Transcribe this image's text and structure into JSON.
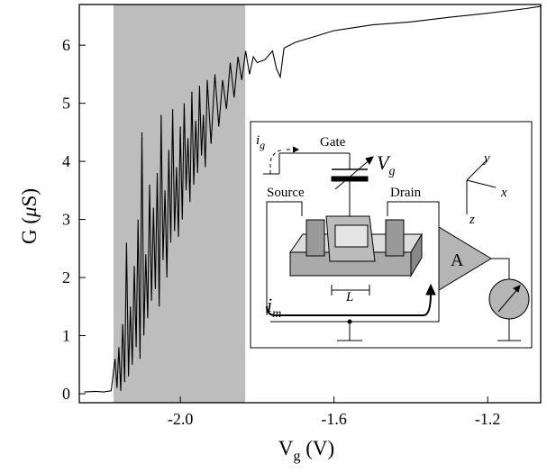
{
  "chart_data": {
    "type": "line",
    "x_label": {
      "main": "V",
      "sub": "g",
      "unit": " (V)"
    },
    "y_label": {
      "main": "G (",
      "greek": "μ",
      "unit": "S)"
    },
    "xlim": [
      -2.263,
      -1.062
    ],
    "ylim": [
      -0.155,
      6.7
    ],
    "xticks": [
      {
        "value": -2,
        "label": "-2.0"
      },
      -1.6,
      -1.2
    ],
    "yticks": [
      0,
      1,
      2,
      3,
      4,
      5,
      6
    ],
    "shade": {
      "range": [
        -2.174,
        -1.831
      ],
      "color": "#bdbdbd"
    },
    "color": "#000000",
    "x": [
      -2.25,
      -2.22,
      -2.2,
      -2.18,
      -2.17,
      -2.165,
      -2.16,
      -2.155,
      -2.15,
      -2.145,
      -2.14,
      -2.135,
      -2.13,
      -2.125,
      -2.12,
      -2.115,
      -2.11,
      -2.105,
      -2.1,
      -2.095,
      -2.09,
      -2.085,
      -2.08,
      -2.075,
      -2.07,
      -2.065,
      -2.06,
      -2.055,
      -2.05,
      -2.045,
      -2.04,
      -2.035,
      -2.03,
      -2.025,
      -2.02,
      -2.015,
      -2.01,
      -2.005,
      -2.0,
      -1.995,
      -1.99,
      -1.985,
      -1.98,
      -1.975,
      -1.97,
      -1.965,
      -1.96,
      -1.955,
      -1.95,
      -1.945,
      -1.94,
      -1.935,
      -1.93,
      -1.92,
      -1.91,
      -1.9,
      -1.89,
      -1.88,
      -1.87,
      -1.86,
      -1.85,
      -1.84,
      -1.83,
      -1.82,
      -1.81,
      -1.8,
      -1.78,
      -1.76,
      -1.75,
      -1.74,
      -1.73,
      -1.7,
      -1.65,
      -1.6,
      -1.55,
      -1.5,
      -1.4,
      -1.3,
      -1.2,
      -1.1,
      -1.06
    ],
    "values": [
      0.03,
      0.04,
      0.03,
      0.05,
      0.6,
      0.1,
      0.8,
      0.05,
      1.2,
      0.2,
      2.6,
      0.3,
      1.5,
      0.5,
      2.2,
      0.8,
      3.0,
      0.6,
      4.5,
      1.0,
      2.4,
      1.3,
      3.6,
      1.6,
      3.2,
      1.8,
      3.8,
      1.5,
      4.8,
      2.3,
      3.5,
      2.0,
      4.2,
      2.6,
      4.9,
      2.8,
      3.9,
      2.7,
      4.6,
      3.0,
      5.0,
      3.5,
      4.4,
      3.3,
      5.2,
      3.6,
      4.7,
      3.8,
      5.3,
      4.1,
      4.8,
      3.9,
      5.4,
      4.3,
      5.5,
      4.6,
      5.4,
      4.9,
      5.7,
      5.1,
      5.8,
      5.4,
      5.9,
      5.5,
      5.8,
      5.7,
      5.75,
      5.9,
      5.6,
      5.45,
      5.95,
      6.05,
      6.15,
      6.25,
      6.3,
      6.35,
      6.4,
      6.48,
      6.55,
      6.63,
      6.67
    ],
    "inset": {
      "ig": {
        "main": "i",
        "sub": "g"
      },
      "gate": "Gate",
      "vg": {
        "main": "V",
        "sub": "g"
      },
      "axis_y": "y",
      "axis_x": "x",
      "axis_z": "z",
      "source": "Source",
      "drain": "Drain",
      "amp": "A",
      "length": "L",
      "im": {
        "main": "i",
        "sub": "m"
      }
    }
  }
}
